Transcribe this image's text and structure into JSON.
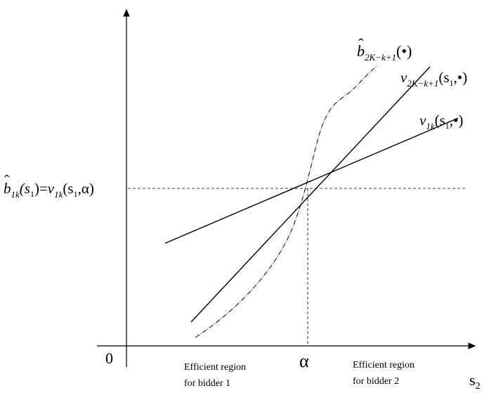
{
  "axes": {
    "origin": "0",
    "x_label": {
      "base": "s",
      "sub": "2"
    },
    "alpha": "α"
  },
  "curves": {
    "b_hat_2K": {
      "hat": "ˆ",
      "base": "b",
      "sub": "2K−k+1",
      "arg": "(•)"
    },
    "v_2K": {
      "base": "v",
      "sub": "2K−k+1",
      "open": "(s",
      "s_sub": "1",
      "rest": ",•)"
    },
    "v_1k": {
      "base": "v",
      "sub": "1k",
      "open": "(s",
      "s_sub": "1",
      "rest": ",•)"
    }
  },
  "y_tick_label": {
    "hat": "ˆ",
    "b": "b",
    "b_sub": "1k",
    "b_arg_open": "(s",
    "b_arg_sub": "1",
    "b_arg_close": ")",
    "equals": "=",
    "v": "v",
    "v_sub": "1k",
    "v_arg_open": "(s",
    "v_arg_sub": "1",
    "v_arg_rest": ",α)"
  },
  "regions": {
    "bidder1": {
      "line1": "Efficient region",
      "line2": "for bidder  1"
    },
    "bidder2": {
      "line1": "Efficient region",
      "line2": "for bidder  2"
    }
  }
}
